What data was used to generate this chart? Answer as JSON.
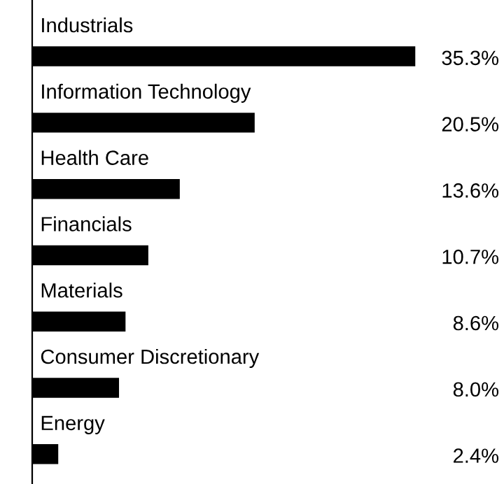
{
  "chart_data": {
    "type": "bar",
    "orientation": "horizontal",
    "categories": [
      "Industrials",
      "Information Technology",
      "Health Care",
      "Financials",
      "Materials",
      "Consumer Discretionary",
      "Energy"
    ],
    "values": [
      35.3,
      20.5,
      13.6,
      10.7,
      8.6,
      8.0,
      2.4
    ],
    "value_labels": [
      "35.3%",
      "20.5%",
      "13.6%",
      "10.7%",
      "8.6%",
      "8.0%",
      "2.4%"
    ],
    "color": "#000000"
  }
}
